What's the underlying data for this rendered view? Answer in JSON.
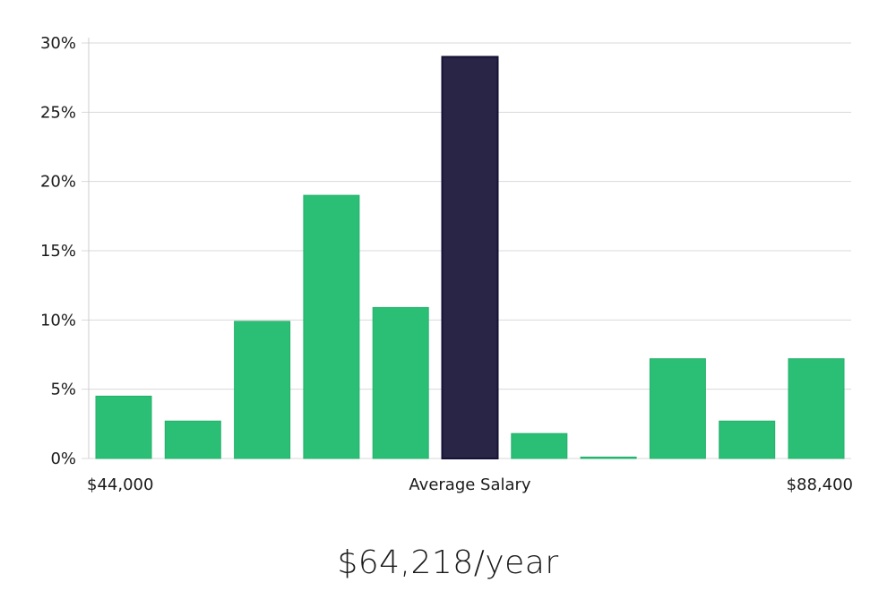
{
  "chart_data": {
    "type": "bar",
    "title": "",
    "ylabel": "",
    "ylim": [
      0,
      30
    ],
    "yticks": [
      0,
      5,
      10,
      15,
      20,
      25,
      30
    ],
    "ytick_labels": [
      "0%",
      "5%",
      "10%",
      "15%",
      "20%",
      "25%",
      "30%"
    ],
    "values": [
      4.5,
      2.7,
      9.9,
      19.0,
      10.9,
      29.0,
      1.8,
      0.1,
      7.2,
      2.7,
      7.2
    ],
    "highlight_index": 5,
    "x_min_label": "$44,000",
    "x_center_label": "Average Salary",
    "x_max_label": "$88,400",
    "grid": true
  },
  "summary": {
    "average_salary": "$64,218/year"
  },
  "colors": {
    "bar": "#2bbf76",
    "bar_stroke": "#24b06b",
    "highlight": "#282546",
    "highlight_stroke": "#141235"
  }
}
